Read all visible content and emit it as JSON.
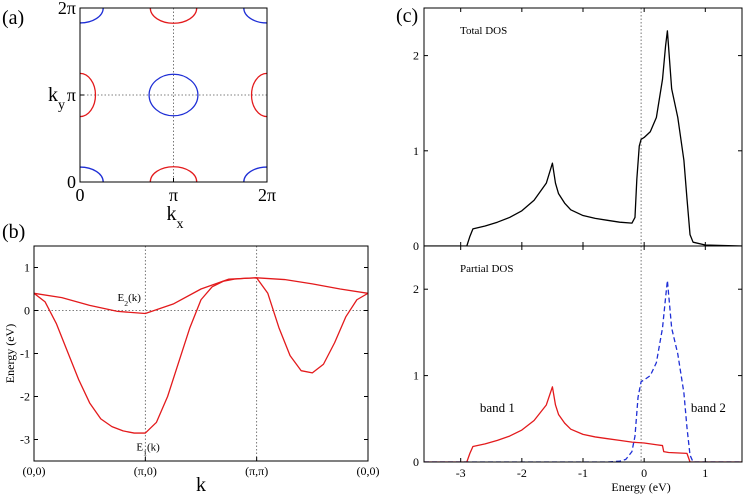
{
  "colors": {
    "red": "#e31a1c",
    "blue": "#1f2fd6",
    "black": "#000000",
    "guide": "#555555"
  },
  "panels": {
    "a": {
      "label": "(a)"
    },
    "b": {
      "label": "(b)"
    },
    "c": {
      "label": "(c)"
    }
  },
  "chart_data": [
    {
      "id": "a",
      "type": "contour",
      "xlabel": "k",
      "xlabel_sub": "x",
      "ylabel": "k",
      "ylabel_sub": "y",
      "xlim": [
        0,
        6.2832
      ],
      "ylim": [
        0,
        6.2832
      ],
      "x_ticks": [
        {
          "value": 0,
          "label": "0"
        },
        {
          "value": 3.1416,
          "label": "π"
        },
        {
          "value": 6.2832,
          "label": "2π"
        }
      ],
      "y_ticks": [
        {
          "value": 0,
          "label": "0"
        },
        {
          "value": 3.1416,
          "label": "π"
        },
        {
          "value": 6.2832,
          "label": "2π"
        }
      ],
      "guides": {
        "x": [
          3.1416
        ],
        "y": [
          3.1416
        ]
      },
      "contours": [
        {
          "color": "blue",
          "center": [
            3.1416,
            3.1416
          ],
          "rx": 0.82,
          "ry": 0.75
        },
        {
          "color": "blue",
          "center": [
            0,
            0
          ],
          "rx": 0.78,
          "ry": 0.54
        },
        {
          "color": "blue",
          "center": [
            6.2832,
            0
          ],
          "rx": 0.78,
          "ry": 0.54
        },
        {
          "color": "blue",
          "center": [
            0,
            6.2832
          ],
          "rx": 0.78,
          "ry": 0.54
        },
        {
          "color": "blue",
          "center": [
            6.2832,
            6.2832
          ],
          "rx": 0.78,
          "ry": 0.54
        },
        {
          "color": "red",
          "center": [
            3.1416,
            0
          ],
          "rx": 0.78,
          "ry": 0.55
        },
        {
          "color": "red",
          "center": [
            3.1416,
            6.2832
          ],
          "rx": 0.78,
          "ry": 0.55
        },
        {
          "color": "red",
          "center": [
            0,
            3.1416
          ],
          "rx": 0.52,
          "ry": 0.78
        },
        {
          "color": "red",
          "center": [
            6.2832,
            3.1416
          ],
          "rx": 0.52,
          "ry": 0.78
        }
      ]
    },
    {
      "id": "b",
      "type": "line",
      "xlabel": "k",
      "ylabel": "Energy (eV)",
      "xlim": [
        0,
        3
      ],
      "ylim": [
        -3.5,
        1.5
      ],
      "x_ticks": [
        {
          "value": 0,
          "label": "(0,0)"
        },
        {
          "value": 1,
          "label": "(π,0)"
        },
        {
          "value": 2,
          "label": "(π,π)"
        },
        {
          "value": 3,
          "label": "(0,0)"
        }
      ],
      "y_ticks": [
        {
          "value": -3,
          "label": "-3"
        },
        {
          "value": -2,
          "label": "-2"
        },
        {
          "value": -1,
          "label": "-1"
        },
        {
          "value": 0,
          "label": "0"
        },
        {
          "value": 1,
          "label": "1"
        }
      ],
      "guides": {
        "x": [
          1,
          2
        ],
        "y": [
          0
        ]
      },
      "series": [
        {
          "name": "E2(k)",
          "color": "red",
          "x": [
            0,
            0.25,
            0.5,
            0.75,
            1.0,
            1.25,
            1.5,
            1.75,
            2.0,
            2.25,
            2.5,
            2.75,
            3.0
          ],
          "y": [
            0.4,
            0.3,
            0.12,
            -0.02,
            -0.07,
            0.15,
            0.5,
            0.73,
            0.76,
            0.72,
            0.62,
            0.5,
            0.4
          ]
        },
        {
          "name": "E1(k)",
          "color": "red",
          "x": [
            0,
            0.1,
            0.2,
            0.3,
            0.4,
            0.5,
            0.6,
            0.7,
            0.8,
            0.9,
            1.0,
            1.1,
            1.2,
            1.3,
            1.4,
            1.5,
            1.6,
            1.7,
            1.8,
            1.9,
            2.0,
            2.1,
            2.2,
            2.3,
            2.4,
            2.5,
            2.6,
            2.7,
            2.8,
            2.9,
            3.0
          ],
          "y": [
            0.4,
            0.2,
            -0.3,
            -0.95,
            -1.6,
            -2.15,
            -2.52,
            -2.7,
            -2.8,
            -2.85,
            -2.85,
            -2.6,
            -2.0,
            -1.2,
            -0.4,
            0.25,
            0.55,
            0.68,
            0.73,
            0.75,
            0.76,
            0.4,
            -0.4,
            -1.05,
            -1.4,
            -1.45,
            -1.25,
            -0.75,
            -0.15,
            0.25,
            0.4
          ]
        }
      ],
      "annotations": [
        {
          "text": "E",
          "sub": "2",
          "rest": "(k)",
          "x": 0.75,
          "y": 0.22
        },
        {
          "text": "E",
          "sub": "1",
          "rest": "(k)",
          "x": 0.92,
          "y": -3.25
        }
      ]
    },
    {
      "id": "c-top",
      "type": "line",
      "title": "Total DOS",
      "xlim": [
        -3.6,
        1.6
      ],
      "ylim": [
        0,
        2.5
      ],
      "y_ticks": [
        {
          "value": 0,
          "label": "0"
        },
        {
          "value": 1,
          "label": "1"
        },
        {
          "value": 2,
          "label": "2"
        }
      ],
      "x_tick_values": [
        -3,
        -2,
        -1,
        0,
        1
      ],
      "guides": {
        "x": [
          -0.05
        ]
      },
      "series": [
        {
          "name": "",
          "color": "black",
          "x": [
            -3.6,
            -2.9,
            -2.85,
            -2.8,
            -2.6,
            -2.4,
            -2.2,
            -2.0,
            -1.8,
            -1.6,
            -1.5,
            -1.45,
            -1.4,
            -1.3,
            -1.2,
            -1.0,
            -0.8,
            -0.6,
            -0.4,
            -0.2,
            -0.15,
            -0.12,
            -0.08,
            -0.05,
            0.0,
            0.1,
            0.2,
            0.3,
            0.35,
            0.38,
            0.45,
            0.55,
            0.65,
            0.7,
            0.75,
            0.8,
            1.0,
            1.6
          ],
          "y": [
            0,
            0,
            0.1,
            0.18,
            0.21,
            0.25,
            0.3,
            0.37,
            0.48,
            0.66,
            0.87,
            0.66,
            0.55,
            0.45,
            0.38,
            0.32,
            0.29,
            0.27,
            0.25,
            0.24,
            0.3,
            0.7,
            1.05,
            1.12,
            1.14,
            1.2,
            1.35,
            1.75,
            2.1,
            2.26,
            1.65,
            1.35,
            0.9,
            0.5,
            0.12,
            0.04,
            0.01,
            0
          ]
        }
      ]
    },
    {
      "id": "c-bottom",
      "type": "line",
      "title": "Partial DOS",
      "xlabel": "Energy (eV)",
      "xlim": [
        -3.6,
        1.6
      ],
      "ylim": [
        0,
        2.5
      ],
      "x_ticks": [
        {
          "value": -3,
          "label": "-3"
        },
        {
          "value": -2,
          "label": "-2"
        },
        {
          "value": -1,
          "label": "-1"
        },
        {
          "value": 0,
          "label": "0"
        },
        {
          "value": 1,
          "label": "1"
        }
      ],
      "y_ticks": [
        {
          "value": 0,
          "label": "0"
        },
        {
          "value": 1,
          "label": "1"
        },
        {
          "value": 2,
          "label": "2"
        }
      ],
      "guides": {
        "x": [
          -0.05
        ]
      },
      "series": [
        {
          "name": "band 1",
          "color": "red",
          "dash": false,
          "x": [
            -3.6,
            -2.9,
            -2.85,
            -2.8,
            -2.6,
            -2.4,
            -2.2,
            -2.0,
            -1.8,
            -1.6,
            -1.5,
            -1.45,
            -1.4,
            -1.3,
            -1.2,
            -1.0,
            -0.8,
            -0.6,
            -0.4,
            -0.2,
            0.0,
            0.2,
            0.3,
            0.32,
            0.4,
            0.7,
            0.75,
            1.6
          ],
          "y": [
            0,
            0,
            0.1,
            0.18,
            0.21,
            0.25,
            0.3,
            0.37,
            0.48,
            0.66,
            0.87,
            0.66,
            0.55,
            0.45,
            0.38,
            0.32,
            0.29,
            0.27,
            0.25,
            0.23,
            0.22,
            0.2,
            0.19,
            0.12,
            0.11,
            0.1,
            0,
            0
          ]
        },
        {
          "name": "band 2",
          "color": "blue",
          "dash": true,
          "x": [
            -3.6,
            -0.6,
            -0.4,
            -0.3,
            -0.2,
            -0.15,
            -0.1,
            -0.05,
            0.0,
            0.1,
            0.2,
            0.3,
            0.35,
            0.38,
            0.45,
            0.55,
            0.65,
            0.7,
            0.75,
            0.8,
            1.6
          ],
          "y": [
            0,
            0,
            0.01,
            0.03,
            0.12,
            0.3,
            0.75,
            0.93,
            0.95,
            1.0,
            1.15,
            1.55,
            1.9,
            2.1,
            1.55,
            1.25,
            0.8,
            0.4,
            0.08,
            0,
            0
          ]
        }
      ],
      "annotations": [
        {
          "text": "band 1",
          "x": -2.4,
          "y": 0.58
        },
        {
          "text": "band 2",
          "x": 1.05,
          "y": 0.58
        }
      ]
    }
  ]
}
